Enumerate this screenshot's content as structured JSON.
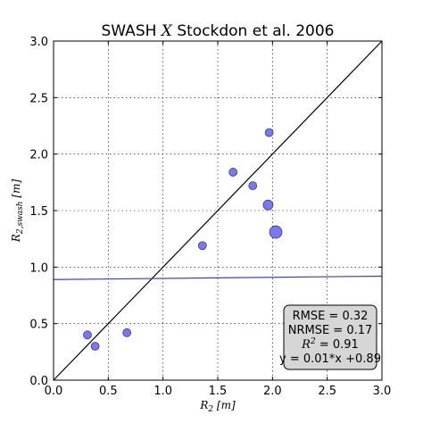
{
  "chart_data": {
    "type": "scatter",
    "title": "SWASH X Stockdon et al. 2006",
    "title_parts": {
      "left": "SWASH",
      "middle": "X",
      "right": "Stockdon et al. 2006"
    },
    "xlabel": {
      "main": "R",
      "sub": "2",
      "unit": "[m]"
    },
    "ylabel": {
      "main": "R",
      "sub": "2,swash",
      "unit": "[m]"
    },
    "xlim": [
      0.0,
      3.0
    ],
    "ylim": [
      0.0,
      3.0
    ],
    "x_ticks": [
      "0.0",
      "0.5",
      "1.0",
      "1.5",
      "2.0",
      "2.5",
      "3.0"
    ],
    "y_ticks": [
      "0.0",
      "0.5",
      "1.0",
      "1.5",
      "2.0",
      "2.5",
      "3.0"
    ],
    "grid": true,
    "points": [
      {
        "x": 0.31,
        "y": 0.4,
        "size": "small"
      },
      {
        "x": 0.38,
        "y": 0.3,
        "size": "small"
      },
      {
        "x": 0.67,
        "y": 0.42,
        "size": "small"
      },
      {
        "x": 1.36,
        "y": 1.19,
        "size": "small"
      },
      {
        "x": 1.64,
        "y": 1.84,
        "size": "small"
      },
      {
        "x": 1.82,
        "y": 1.72,
        "size": "small"
      },
      {
        "x": 1.96,
        "y": 1.55,
        "size": "medium"
      },
      {
        "x": 1.97,
        "y": 2.19,
        "size": "small"
      },
      {
        "x": 2.03,
        "y": 1.31,
        "size": "large"
      }
    ],
    "lines": [
      {
        "kind": "identity",
        "x": [
          0.0,
          3.0
        ],
        "y": [
          0.0,
          3.0
        ],
        "color": "#000000"
      },
      {
        "kind": "fit",
        "x": [
          0.0,
          3.0
        ],
        "y": [
          0.89,
          0.92
        ],
        "color": "#3a3ae0"
      }
    ],
    "point_color": "#7878f0",
    "point_edge": "#3c3c8c",
    "stats_box": {
      "position": "bottom-right",
      "rmse": "RMSE = 0.32",
      "nrmse": "NRMSE = 0.17",
      "r2_symbol": "R",
      "r2_exp": "2",
      "r2_value": " = 0.91",
      "fit_eq": "y = 0.01*x +0.89",
      "background": "#d6d6d6"
    }
  }
}
